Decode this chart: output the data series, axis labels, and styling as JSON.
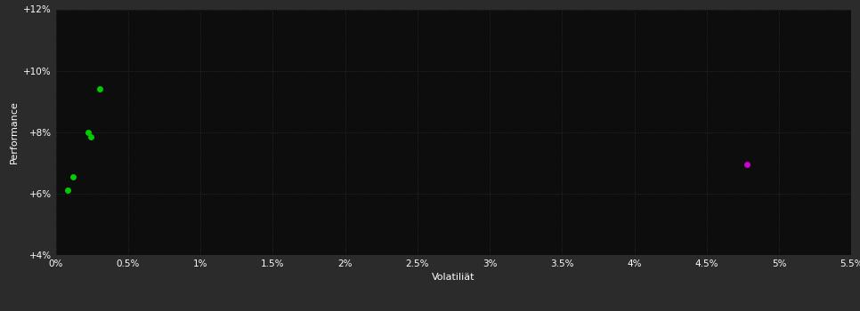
{
  "background_color": "#2b2b2b",
  "plot_bg_color": "#0d0d0d",
  "grid_color": "#2a2a2a",
  "text_color": "#ffffff",
  "xlabel": "Volatiliät",
  "ylabel": "Performance",
  "xlim": [
    0.0,
    0.055
  ],
  "ylim": [
    0.04,
    0.12
  ],
  "xticks": [
    0.0,
    0.005,
    0.01,
    0.015,
    0.02,
    0.025,
    0.03,
    0.035,
    0.04,
    0.045,
    0.05,
    0.055
  ],
  "yticks": [
    0.04,
    0.06,
    0.08,
    0.1,
    0.12
  ],
  "xtick_labels": [
    "0%",
    "0.5%",
    "1%",
    "1.5%",
    "2%",
    "2.5%",
    "3%",
    "3.5%",
    "4%",
    "4.5%",
    "5%",
    "5.5%"
  ],
  "ytick_labels": [
    "+4%",
    "+6%",
    "+8%",
    "+10%",
    "+12%"
  ],
  "points_green": [
    [
      0.003,
      0.094
    ],
    [
      0.0022,
      0.08
    ],
    [
      0.0024,
      0.0785
    ],
    [
      0.0012,
      0.0655
    ],
    [
      0.0008,
      0.061
    ]
  ],
  "points_magenta": [
    [
      0.0478,
      0.0695
    ]
  ],
  "green_color": "#00cc00",
  "magenta_color": "#cc00cc",
  "marker_size": 5
}
